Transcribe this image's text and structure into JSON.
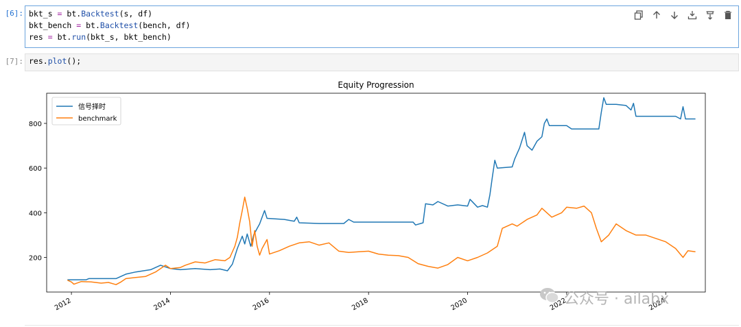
{
  "cells": [
    {
      "prompt": "[6]:",
      "lines": [
        [
          {
            "t": "bkt_s "
          },
          {
            "t": "=",
            "c": "kw"
          },
          {
            "t": " bt."
          },
          {
            "t": "Backtest",
            "c": "fn"
          },
          {
            "t": "(s, df)"
          }
        ],
        [
          {
            "t": "bkt_bench "
          },
          {
            "t": "=",
            "c": "kw"
          },
          {
            "t": " bt."
          },
          {
            "t": "Backtest",
            "c": "fn"
          },
          {
            "t": "(bench, df)"
          }
        ],
        [
          {
            "t": "res "
          },
          {
            "t": "=",
            "c": "kw"
          },
          {
            "t": " bt."
          },
          {
            "t": "run",
            "c": "fn"
          },
          {
            "t": "(bkt_s, bkt_bench)"
          }
        ]
      ]
    },
    {
      "prompt": "[7]:",
      "lines": [
        [
          {
            "t": "res."
          },
          {
            "t": "plot",
            "c": "fn"
          },
          {
            "t": "();"
          }
        ]
      ]
    }
  ],
  "toolbar": {
    "icons": [
      "copy-icon",
      "arrow-up-icon",
      "arrow-down-icon",
      "insert-above-icon",
      "insert-below-icon",
      "trash-icon"
    ]
  },
  "watermark": {
    "text": "公众号 · ailabx",
    "icon": "wechat-icon",
    "color": "#b5b5b5"
  },
  "chart_data": {
    "type": "line",
    "title": "Equity Progression",
    "xlabel": "",
    "ylabel": "",
    "x_ticks": [
      "2012",
      "2014",
      "2016",
      "2018",
      "2020",
      "2022",
      "2024"
    ],
    "y_ticks": [
      200,
      400,
      600,
      800
    ],
    "xlim": [
      2011.5,
      2024.8
    ],
    "ylim": [
      45,
      935
    ],
    "grid": false,
    "legend": "top-left",
    "series": [
      {
        "name": "信号择时",
        "color": "#1f77b4",
        "points": [
          [
            2011.92,
            100
          ],
          [
            2012.3,
            100
          ],
          [
            2012.35,
            105
          ],
          [
            2012.9,
            105
          ],
          [
            2013.1,
            125
          ],
          [
            2013.3,
            135
          ],
          [
            2013.6,
            145
          ],
          [
            2013.8,
            165
          ],
          [
            2014.0,
            150
          ],
          [
            2014.2,
            145
          ],
          [
            2014.5,
            150
          ],
          [
            2014.8,
            145
          ],
          [
            2015.0,
            148
          ],
          [
            2015.15,
            140
          ],
          [
            2015.25,
            170
          ],
          [
            2015.35,
            240
          ],
          [
            2015.45,
            295
          ],
          [
            2015.5,
            260
          ],
          [
            2015.55,
            305
          ],
          [
            2015.62,
            250
          ],
          [
            2015.68,
            300
          ],
          [
            2015.75,
            330
          ],
          [
            2015.8,
            350
          ],
          [
            2015.9,
            410
          ],
          [
            2015.95,
            375
          ],
          [
            2016.3,
            370
          ],
          [
            2016.5,
            362
          ],
          [
            2016.55,
            380
          ],
          [
            2016.6,
            355
          ],
          [
            2017.0,
            352
          ],
          [
            2017.5,
            352
          ],
          [
            2017.6,
            370
          ],
          [
            2017.7,
            358
          ],
          [
            2018.0,
            358
          ],
          [
            2018.5,
            358
          ],
          [
            2018.9,
            358
          ],
          [
            2018.95,
            345
          ],
          [
            2019.1,
            355
          ],
          [
            2019.15,
            440
          ],
          [
            2019.3,
            435
          ],
          [
            2019.4,
            450
          ],
          [
            2019.6,
            430
          ],
          [
            2019.8,
            435
          ],
          [
            2020.0,
            430
          ],
          [
            2020.05,
            460
          ],
          [
            2020.2,
            425
          ],
          [
            2020.3,
            432
          ],
          [
            2020.4,
            425
          ],
          [
            2020.45,
            480
          ],
          [
            2020.5,
            560
          ],
          [
            2020.55,
            635
          ],
          [
            2020.6,
            600
          ],
          [
            2020.9,
            605
          ],
          [
            2020.95,
            640
          ],
          [
            2021.05,
            690
          ],
          [
            2021.15,
            760
          ],
          [
            2021.2,
            700
          ],
          [
            2021.3,
            680
          ],
          [
            2021.4,
            720
          ],
          [
            2021.5,
            740
          ],
          [
            2021.55,
            800
          ],
          [
            2021.6,
            820
          ],
          [
            2021.65,
            790
          ],
          [
            2022.0,
            790
          ],
          [
            2022.1,
            775
          ],
          [
            2022.5,
            775
          ],
          [
            2022.65,
            775
          ],
          [
            2022.7,
            850
          ],
          [
            2022.75,
            915
          ],
          [
            2022.8,
            885
          ],
          [
            2023.0,
            885
          ],
          [
            2023.2,
            880
          ],
          [
            2023.3,
            860
          ],
          [
            2023.35,
            890
          ],
          [
            2023.4,
            832
          ],
          [
            2023.8,
            832
          ],
          [
            2024.0,
            832
          ],
          [
            2024.2,
            832
          ],
          [
            2024.3,
            820
          ],
          [
            2024.35,
            875
          ],
          [
            2024.4,
            820
          ],
          [
            2024.6,
            820
          ]
        ]
      },
      {
        "name": "benchmark",
        "color": "#ff7f0e",
        "points": [
          [
            2011.92,
            98
          ],
          [
            2012.0,
            90
          ],
          [
            2012.05,
            80
          ],
          [
            2012.2,
            92
          ],
          [
            2012.4,
            90
          ],
          [
            2012.6,
            85
          ],
          [
            2012.75,
            88
          ],
          [
            2012.9,
            78
          ],
          [
            2013.0,
            90
          ],
          [
            2013.1,
            105
          ],
          [
            2013.3,
            110
          ],
          [
            2013.5,
            115
          ],
          [
            2013.7,
            135
          ],
          [
            2013.9,
            165
          ],
          [
            2014.0,
            150
          ],
          [
            2014.2,
            155
          ],
          [
            2014.3,
            165
          ],
          [
            2014.5,
            180
          ],
          [
            2014.7,
            175
          ],
          [
            2014.9,
            190
          ],
          [
            2015.1,
            185
          ],
          [
            2015.2,
            200
          ],
          [
            2015.3,
            250
          ],
          [
            2015.35,
            290
          ],
          [
            2015.4,
            355
          ],
          [
            2015.45,
            410
          ],
          [
            2015.5,
            470
          ],
          [
            2015.55,
            420
          ],
          [
            2015.6,
            360
          ],
          [
            2015.65,
            250
          ],
          [
            2015.7,
            320
          ],
          [
            2015.75,
            250
          ],
          [
            2015.8,
            210
          ],
          [
            2015.85,
            240
          ],
          [
            2015.95,
            280
          ],
          [
            2016.0,
            215
          ],
          [
            2016.2,
            230
          ],
          [
            2016.4,
            250
          ],
          [
            2016.6,
            265
          ],
          [
            2016.8,
            270
          ],
          [
            2017.0,
            255
          ],
          [
            2017.2,
            265
          ],
          [
            2017.4,
            228
          ],
          [
            2017.6,
            222
          ],
          [
            2017.8,
            225
          ],
          [
            2018.0,
            228
          ],
          [
            2018.2,
            215
          ],
          [
            2018.4,
            210
          ],
          [
            2018.6,
            208
          ],
          [
            2018.8,
            200
          ],
          [
            2019.0,
            172
          ],
          [
            2019.2,
            160
          ],
          [
            2019.4,
            152
          ],
          [
            2019.6,
            168
          ],
          [
            2019.8,
            200
          ],
          [
            2020.0,
            185
          ],
          [
            2020.2,
            200
          ],
          [
            2020.4,
            220
          ],
          [
            2020.6,
            250
          ],
          [
            2020.7,
            330
          ],
          [
            2020.9,
            350
          ],
          [
            2021.0,
            340
          ],
          [
            2021.2,
            370
          ],
          [
            2021.4,
            390
          ],
          [
            2021.5,
            420
          ],
          [
            2021.7,
            380
          ],
          [
            2021.9,
            400
          ],
          [
            2022.0,
            425
          ],
          [
            2022.2,
            420
          ],
          [
            2022.35,
            430
          ],
          [
            2022.5,
            400
          ],
          [
            2022.6,
            330
          ],
          [
            2022.7,
            270
          ],
          [
            2022.85,
            300
          ],
          [
            2023.0,
            350
          ],
          [
            2023.2,
            320
          ],
          [
            2023.4,
            300
          ],
          [
            2023.6,
            300
          ],
          [
            2023.8,
            285
          ],
          [
            2024.0,
            270
          ],
          [
            2024.2,
            240
          ],
          [
            2024.35,
            200
          ],
          [
            2024.45,
            230
          ],
          [
            2024.6,
            225
          ]
        ]
      }
    ]
  }
}
